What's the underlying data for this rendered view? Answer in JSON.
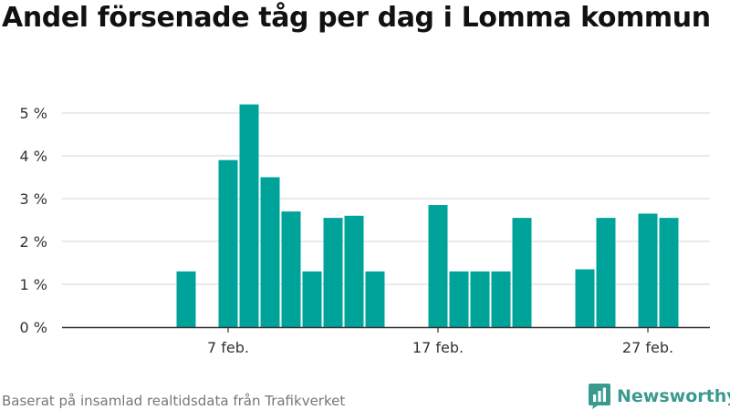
{
  "title": "Andel försenade tåg per dag i Lomma kommun",
  "footer": {
    "source": "Baserat på insamlad realtidsdata från Trafikverket",
    "brand": "Newsworthy"
  },
  "colors": {
    "bar": "#00a39a",
    "brand": "#3a9a8f",
    "grid": "#d6d6d6",
    "axis": "#333333"
  },
  "chart_data": {
    "type": "bar",
    "title": "Andel försenade tåg per dag i Lomma kommun",
    "xlabel": "",
    "ylabel": "",
    "x_ticks": [
      {
        "day": 7,
        "label": "7 feb."
      },
      {
        "day": 17,
        "label": "17 feb."
      },
      {
        "day": 27,
        "label": "27 feb."
      }
    ],
    "y_ticks": [
      {
        "value": 0,
        "label": "0 %"
      },
      {
        "value": 1,
        "label": "1 %"
      },
      {
        "value": 2,
        "label": "2 %"
      },
      {
        "value": 3,
        "label": "3 %"
      },
      {
        "value": 4,
        "label": "4 %"
      },
      {
        "value": 5,
        "label": "5 %"
      }
    ],
    "ylim": [
      0,
      5.5
    ],
    "grid": true,
    "bars": [
      {
        "day": 5,
        "value": 1.3
      },
      {
        "day": 7,
        "value": 3.9
      },
      {
        "day": 8,
        "value": 5.2
      },
      {
        "day": 9,
        "value": 3.5
      },
      {
        "day": 10,
        "value": 2.7
      },
      {
        "day": 11,
        "value": 1.3
      },
      {
        "day": 12,
        "value": 2.55
      },
      {
        "day": 13,
        "value": 2.6
      },
      {
        "day": 14,
        "value": 1.3
      },
      {
        "day": 17,
        "value": 2.85
      },
      {
        "day": 18,
        "value": 1.3
      },
      {
        "day": 19,
        "value": 1.3
      },
      {
        "day": 20,
        "value": 1.3
      },
      {
        "day": 21,
        "value": 2.55
      },
      {
        "day": 24,
        "value": 1.35
      },
      {
        "day": 25,
        "value": 2.55
      },
      {
        "day": 27,
        "value": 2.65
      },
      {
        "day": 28,
        "value": 2.55
      }
    ]
  }
}
